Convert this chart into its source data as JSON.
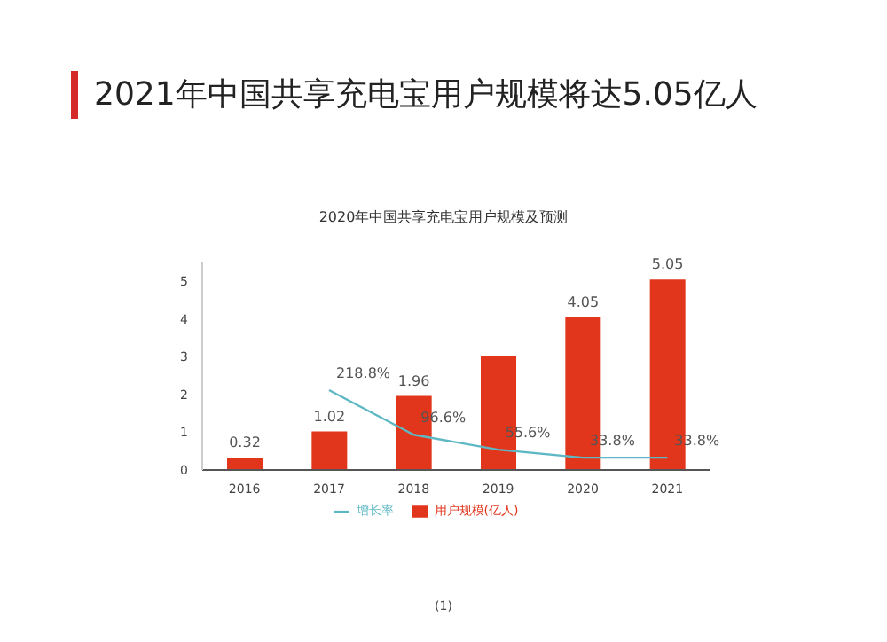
{
  "chart_data": {
    "type": "bar",
    "title": "2021年中国共享充电宝用户规模将达5.05亿人",
    "subtitle": "2020年中国共享充电宝用户规模及预测",
    "categories": [
      "2016",
      "2017",
      "2018",
      "2019",
      "2020",
      "2021"
    ],
    "series": [
      {
        "name": "用户规模(亿人)",
        "type": "bar",
        "color": "#e2361c",
        "values": [
          0.32,
          1.02,
          1.96,
          3.03,
          4.05,
          5.05
        ],
        "value_labels": [
          "0.32",
          "1.02",
          "1.96",
          null,
          "4.05",
          "5.05"
        ]
      },
      {
        "name": "增长率",
        "type": "line",
        "axis": "y2",
        "color": "#5db8c4",
        "values": [
          null,
          218.8,
          96.6,
          55.6,
          33.8,
          33.8
        ],
        "value_labels": [
          null,
          "218.8%",
          "96.6%",
          "55.6%",
          "33.8%",
          "33.8%"
        ]
      }
    ],
    "ylim": [
      0,
      5.5
    ],
    "yticks": [
      0,
      1,
      2,
      3,
      4,
      5
    ],
    "tick_labels": "xy",
    "grid": false,
    "legend": "bottom",
    "marker": "none",
    "line_style": "solid",
    "annotations": [
      "(1)"
    ]
  }
}
